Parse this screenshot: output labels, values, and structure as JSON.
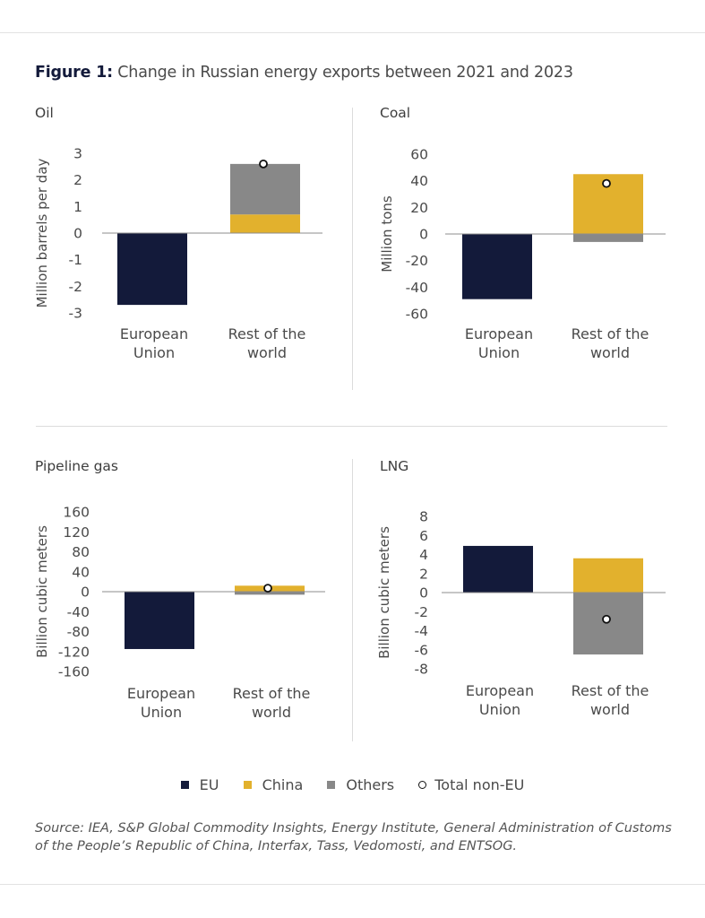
{
  "figure": {
    "label": "Figure 1:",
    "title": "Change in Russian energy exports between 2021 and 2023"
  },
  "colors": {
    "EU": "#131a3a",
    "China": "#e2b12d",
    "Others": "#888888",
    "Total non-EU": "#ffffff",
    "axis": "#8c8c8c",
    "text": "#4a4a4a"
  },
  "legend": [
    {
      "key": "EU",
      "label": "EU",
      "marker": "square"
    },
    {
      "key": "China",
      "label": "China",
      "marker": "square"
    },
    {
      "key": "Others",
      "label": "Others",
      "marker": "square"
    },
    {
      "key": "Total non-EU",
      "label": "Total non-EU",
      "marker": "hollow-circle"
    }
  ],
  "source": "Source: IEA, S&P Global Commodity Insights, Energy Institute, General Administration of Customs of the People’s Republic of China, Interfax, Tass, Vedomosti, and ENTSOG.",
  "chart_data": [
    {
      "type": "bar",
      "stacked": true,
      "title": "Oil",
      "ylabel": "Million barrels per day",
      "ylim": [
        -3,
        3
      ],
      "yticks": [
        3,
        2,
        1,
        0,
        -1,
        -2,
        -3
      ],
      "categories": [
        "European Union",
        "Rest of the world"
      ],
      "category_lines": [
        [
          "European",
          "Union"
        ],
        [
          "Rest of the",
          "world"
        ]
      ],
      "series": [
        {
          "name": "EU",
          "values": [
            -2.7,
            0
          ]
        },
        {
          "name": "China",
          "values": [
            0,
            0.7
          ]
        },
        {
          "name": "Others",
          "values": [
            0,
            1.9
          ]
        }
      ],
      "markers": {
        "name": "Total non-EU",
        "values": [
          null,
          2.6
        ]
      }
    },
    {
      "type": "bar",
      "stacked": true,
      "title": "Coal",
      "ylabel": "Million tons",
      "ylim": [
        -60,
        60
      ],
      "yticks": [
        60,
        40,
        20,
        0,
        -20,
        -40,
        -60
      ],
      "categories": [
        "European Union",
        "Rest of the world"
      ],
      "category_lines": [
        [
          "European",
          "Union"
        ],
        [
          "Rest of the",
          "world"
        ]
      ],
      "series": [
        {
          "name": "EU",
          "values": [
            -49,
            0
          ]
        },
        {
          "name": "China",
          "values": [
            0,
            45
          ]
        },
        {
          "name": "Others",
          "values": [
            0,
            -6
          ]
        }
      ],
      "markers": {
        "name": "Total non-EU",
        "values": [
          null,
          38
        ]
      }
    },
    {
      "type": "bar",
      "stacked": true,
      "title": "Pipeline gas",
      "ylabel": "Billion cubic meters",
      "ylim": [
        -160,
        160
      ],
      "yticks": [
        160,
        120,
        80,
        40,
        0,
        -40,
        -80,
        -120,
        -160
      ],
      "categories": [
        "European Union",
        "Rest of the world"
      ],
      "category_lines": [
        [
          "European",
          "Union"
        ],
        [
          "Rest of the",
          "world"
        ]
      ],
      "series": [
        {
          "name": "EU",
          "values": [
            -115,
            0
          ]
        },
        {
          "name": "China",
          "values": [
            0,
            12
          ]
        },
        {
          "name": "Others",
          "values": [
            0,
            -6
          ]
        }
      ],
      "markers": {
        "name": "Total non-EU",
        "values": [
          null,
          7
        ]
      }
    },
    {
      "type": "bar",
      "stacked": true,
      "title": "LNG",
      "ylabel": "Billion cubic meters",
      "ylim": [
        -8,
        8
      ],
      "yticks": [
        8,
        6,
        4,
        2,
        0,
        -2,
        -4,
        -6,
        -8
      ],
      "categories": [
        "European Union",
        "Rest of the world"
      ],
      "category_lines": [
        [
          "European",
          "Union"
        ],
        [
          "Rest of the",
          "world"
        ]
      ],
      "series": [
        {
          "name": "EU",
          "values": [
            4.9,
            0
          ]
        },
        {
          "name": "China",
          "values": [
            0,
            3.6
          ]
        },
        {
          "name": "Others",
          "values": [
            0,
            -6.5
          ]
        }
      ],
      "markers": {
        "name": "Total non-EU",
        "values": [
          null,
          -2.8
        ]
      }
    }
  ]
}
